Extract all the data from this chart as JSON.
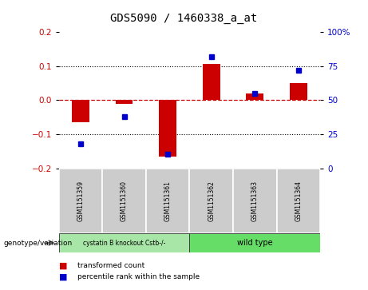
{
  "title": "GDS5090 / 1460338_a_at",
  "samples": [
    "GSM1151359",
    "GSM1151360",
    "GSM1151361",
    "GSM1151362",
    "GSM1151363",
    "GSM1151364"
  ],
  "red_values": [
    -0.065,
    -0.01,
    -0.165,
    0.105,
    0.02,
    0.05
  ],
  "blue_values": [
    18,
    38,
    10,
    82,
    55,
    72
  ],
  "ylim_left": [
    -0.2,
    0.2
  ],
  "ylim_right": [
    0,
    100
  ],
  "yticks_left": [
    -0.2,
    -0.1,
    0.0,
    0.1,
    0.2
  ],
  "yticks_right": [
    0,
    25,
    50,
    75,
    100
  ],
  "ytick_labels_right": [
    "0",
    "25",
    "50",
    "75",
    "100%"
  ],
  "group_label": "genotype/variation",
  "group1_text": "cystatin B knockout Cstb-/-",
  "group2_text": "wild type",
  "legend_red": "transformed count",
  "legend_blue": "percentile rank within the sample",
  "red_color": "#CC0000",
  "blue_color": "#0000CC",
  "hline_color": "#CC0000",
  "bar_width": 0.4,
  "background_color": "#ffffff",
  "plot_bg": "#ffffff",
  "group1_color": "#a8e6a8",
  "group2_color": "#66dd66",
  "sample_box_color": "#cccccc",
  "dotline_color": "#000000",
  "spine_color": "#aaaaaa"
}
